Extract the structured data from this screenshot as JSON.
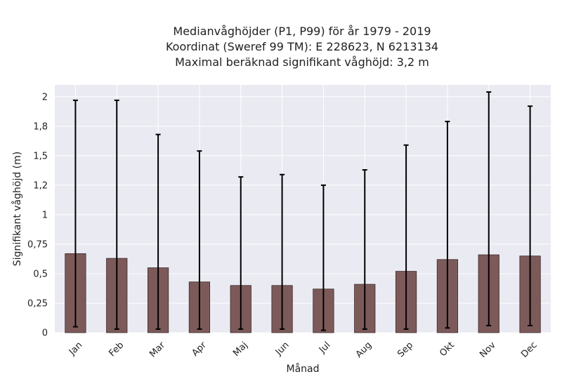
{
  "chart_data": {
    "type": "bar",
    "title_lines": [
      "Medianvåghöjder (P1, P99) för år 1979 - 2019",
      "Koordinat (Sweref 99 TM): E 228623, N 6213134",
      "Maximal beräknad signifikant våghöjd: 3,2 m"
    ],
    "xlabel": "Månad",
    "ylabel": "Signifikant våghöjd (m)",
    "categories": [
      "Jan",
      "Feb",
      "Mar",
      "Apr",
      "Maj",
      "Jun",
      "Jul",
      "Aug",
      "Sep",
      "Okt",
      "Nov",
      "Dec"
    ],
    "values": [
      0.67,
      0.63,
      0.55,
      0.43,
      0.4,
      0.4,
      0.37,
      0.41,
      0.52,
      0.62,
      0.66,
      0.65
    ],
    "p1": [
      0.05,
      0.03,
      0.03,
      0.03,
      0.03,
      0.03,
      0.02,
      0.03,
      0.03,
      0.04,
      0.06,
      0.06
    ],
    "p99": [
      1.97,
      1.97,
      1.68,
      1.54,
      1.32,
      1.34,
      1.25,
      1.38,
      1.59,
      1.79,
      2.04,
      1.92
    ],
    "yticks": [
      0,
      0.25,
      0.5,
      0.75,
      1,
      1.25,
      1.5,
      1.75,
      2
    ],
    "ytick_labels": [
      "0",
      "0,25",
      "0,5",
      "0,75",
      "1",
      "1,2",
      "1,5",
      "1,8",
      "2"
    ],
    "ylim": [
      0,
      2.1
    ],
    "grid": true,
    "colors": {
      "bar": "#7d5a5a",
      "bar_edge": "#3a2a2a",
      "error_bar": "#000000",
      "plot_bg": "#eaeaf2",
      "grid": "#ffffff"
    }
  }
}
